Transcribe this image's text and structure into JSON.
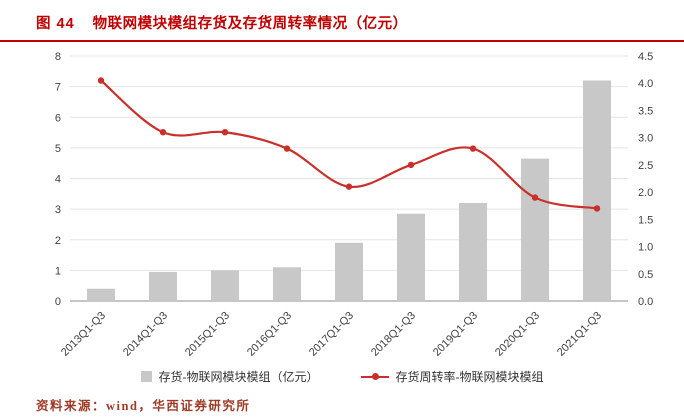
{
  "title": {
    "prefix": "图 44",
    "text": "物联网模块模组存货及存货周转率情况（亿元）"
  },
  "source": "资料来源：wind，华西证券研究所",
  "colors": {
    "title_red": "#c00000",
    "bar_gray": "#c8c8c8",
    "line_red": "#c9302c",
    "axis_text": "#404040",
    "gridline": "#e4e4e4",
    "baseline": "#8c8c8c",
    "source_text": "#9e3b27"
  },
  "chart_data": {
    "type": "bar+line combo",
    "categories": [
      "2013Q1-Q3",
      "2014Q1-Q3",
      "2015Q1-Q3",
      "2016Q1-Q3",
      "2017Q1-Q3",
      "2018Q1-Q3",
      "2019Q1-Q3",
      "2020Q1-Q3",
      "2021Q1-Q3"
    ],
    "series": [
      {
        "name": "存货-物联网模块模组（亿元）",
        "type": "bar",
        "axis": "left",
        "color": "#c8c8c8",
        "values": [
          0.4,
          0.95,
          1.0,
          1.1,
          1.9,
          2.85,
          3.2,
          4.65,
          7.2
        ]
      },
      {
        "name": "存货周转率-物联网模块模组",
        "type": "line",
        "axis": "right",
        "color": "#c9302c",
        "values": [
          4.05,
          3.1,
          3.1,
          2.8,
          2.1,
          2.5,
          2.8,
          1.9,
          1.7
        ]
      }
    ],
    "left_axis": {
      "min": 0,
      "max": 8,
      "step": 1
    },
    "right_axis": {
      "min": 0,
      "max": 4.5,
      "step": 0.5
    },
    "grid": "horizontal",
    "legend_position": "bottom"
  }
}
